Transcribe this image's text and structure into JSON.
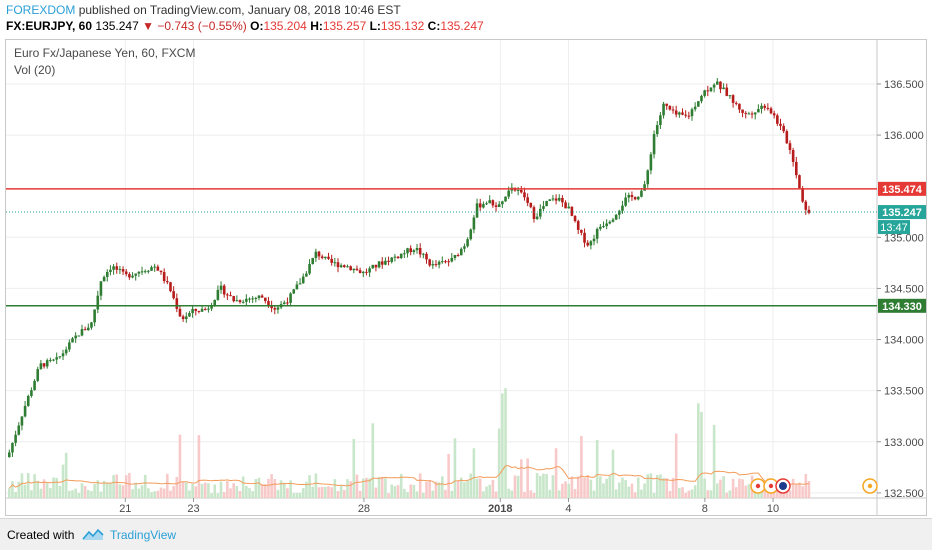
{
  "header": {
    "author": "FOREXDOM",
    "published_text": "published on TradingView.com, January 08, 2018 10:46 EST",
    "symbol": "FX:EURJPY, 60",
    "last": "135.247",
    "change": "−0.743 (−0.55%)",
    "open_label": "O:",
    "open": "135.204",
    "high_label": "H:",
    "high": "135.257",
    "low_label": "L:",
    "low": "135.132",
    "close_label": "C:",
    "close": "135.247"
  },
  "chart_title": "Euro Fx/Japanese Yen, 60, FXCM",
  "volume_label": "Vol (20)",
  "footer": {
    "created_with": "Created with",
    "brand": "TradingView"
  },
  "colors": {
    "up": "#2e7d32",
    "down": "#b71c1c",
    "vol_up": "#c8e6c9",
    "vol_down": "#f8c9c9",
    "resistance": "#e53935",
    "support": "#2e7d32",
    "last_price": "#26a69a",
    "vol_ma": "#f39c5a"
  },
  "chart_data": {
    "type": "candlestick",
    "symbol": "FX:EURJPY",
    "interval": "60",
    "y_ticks": [
      "136.500",
      "136.000",
      "135.000",
      "134.500",
      "134.000",
      "133.500",
      "133.000",
      "132.500"
    ],
    "y_tick_values": [
      136.5,
      136.0,
      135.0,
      134.5,
      134.0,
      133.5,
      133.0,
      132.5
    ],
    "ylim": [
      132.45,
      136.93
    ],
    "x_ticks": [
      "21",
      "23",
      "28",
      "2018",
      "4",
      "8",
      "10"
    ],
    "x_tick_values": [
      21,
      23,
      28,
      32,
      34,
      38,
      40
    ],
    "xlim": [
      17.5,
      43.05
    ],
    "grid": true,
    "horizontal_lines": [
      {
        "value": 135.474,
        "label": "135.474",
        "role": "resistance"
      },
      {
        "value": 134.33,
        "label": "134.330",
        "role": "support"
      }
    ],
    "last_price": {
      "value": 135.247,
      "label": "135.247",
      "countdown": "13:47"
    },
    "price_path": [
      [
        17.55,
        132.85
      ],
      [
        18.0,
        133.3
      ],
      [
        18.5,
        133.75
      ],
      [
        19.0,
        133.8
      ],
      [
        19.6,
        134.05
      ],
      [
        20.0,
        134.15
      ],
      [
        20.3,
        134.6
      ],
      [
        20.6,
        134.72
      ],
      [
        21.0,
        134.62
      ],
      [
        21.5,
        134.68
      ],
      [
        21.9,
        134.72
      ],
      [
        22.3,
        134.5
      ],
      [
        22.65,
        134.2
      ],
      [
        23.0,
        134.28
      ],
      [
        23.4,
        134.3
      ],
      [
        23.8,
        134.5
      ],
      [
        24.2,
        134.38
      ],
      [
        24.6,
        134.4
      ],
      [
        25.0,
        134.42
      ],
      [
        25.4,
        134.3
      ],
      [
        25.8,
        134.4
      ],
      [
        26.2,
        134.6
      ],
      [
        26.6,
        134.85
      ],
      [
        27.0,
        134.75
      ],
      [
        27.5,
        134.72
      ],
      [
        28.0,
        134.65
      ],
      [
        28.5,
        134.75
      ],
      [
        29.0,
        134.82
      ],
      [
        29.5,
        134.9
      ],
      [
        30.0,
        134.72
      ],
      [
        30.6,
        134.78
      ],
      [
        31.0,
        134.95
      ],
      [
        31.3,
        135.3
      ],
      [
        31.6,
        135.35
      ],
      [
        32.0,
        135.3
      ],
      [
        32.3,
        135.5
      ],
      [
        32.7,
        135.4
      ],
      [
        33.0,
        135.2
      ],
      [
        33.4,
        135.35
      ],
      [
        33.7,
        135.38
      ],
      [
        34.0,
        135.28
      ],
      [
        34.3,
        135.05
      ],
      [
        34.6,
        134.92
      ],
      [
        34.9,
        135.1
      ],
      [
        35.3,
        135.2
      ],
      [
        35.7,
        135.38
      ],
      [
        36.0,
        135.4
      ],
      [
        36.25,
        135.5
      ],
      [
        36.5,
        136.0
      ],
      [
        36.8,
        136.3
      ],
      [
        37.1,
        136.2
      ],
      [
        37.5,
        136.18
      ],
      [
        37.9,
        136.4
      ],
      [
        38.3,
        136.52
      ],
      [
        38.6,
        136.42
      ],
      [
        38.9,
        136.3
      ],
      [
        39.2,
        136.2
      ],
      [
        39.5,
        136.25
      ],
      [
        39.8,
        136.3
      ],
      [
        40.1,
        136.15
      ],
      [
        40.4,
        135.95
      ],
      [
        40.6,
        135.75
      ],
      [
        40.8,
        135.45
      ],
      [
        41.0,
        135.22
      ],
      [
        41.1,
        135.247
      ]
    ],
    "volume": {
      "label": "Vol (20)",
      "typical_range": "low, with spikes near 32 and 38",
      "ma_period": 20
    }
  }
}
